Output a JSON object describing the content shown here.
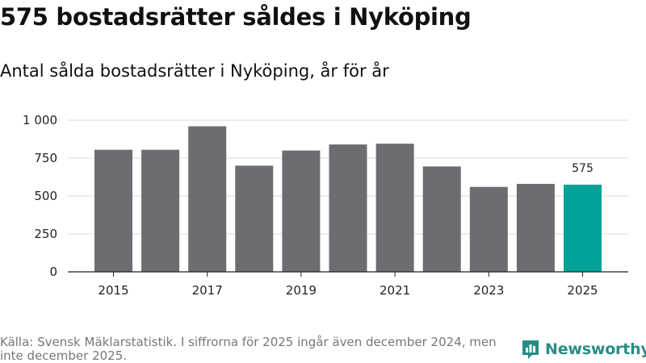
{
  "header": {
    "title": "575 bostadsrätter såldes i Nyköping",
    "subtitle": "Antal sålda bostadsrätter i Nyköping, år för år"
  },
  "footer": {
    "source": "Källa: Svensk Mäklarstatistik. I siffrorna för 2025 ingår även december 2024, men inte december 2025.",
    "brand": "Newsworthy"
  },
  "colors": {
    "bar": "#6d6c71",
    "highlight": "#00a19a",
    "grid": "#d9d9d9",
    "axis": "#222222",
    "brand": "#2a8c86"
  },
  "chart_data": {
    "type": "bar",
    "title": "575 bostadsrätter såldes i Nyköping",
    "subtitle": "Antal sålda bostadsrätter i Nyköping, år för år",
    "categories": [
      2015,
      2016,
      2017,
      2018,
      2019,
      2020,
      2021,
      2022,
      2023,
      2024,
      2025
    ],
    "values": [
      805,
      805,
      960,
      700,
      800,
      840,
      845,
      695,
      560,
      580,
      575
    ],
    "highlight_index": 10,
    "data_labels": [
      {
        "index": 10,
        "text": "575"
      }
    ],
    "xticks": [
      "2015",
      "2017",
      "2019",
      "2021",
      "2023",
      "2025"
    ],
    "yticks": [
      {
        "value": 0,
        "label": "0"
      },
      {
        "value": 250,
        "label": "250"
      },
      {
        "value": 500,
        "label": "500"
      },
      {
        "value": 750,
        "label": "750"
      },
      {
        "value": 1000,
        "label": "1 000"
      }
    ],
    "ylim": [
      0,
      1000
    ],
    "grid": true,
    "xlabel": "",
    "ylabel": ""
  }
}
